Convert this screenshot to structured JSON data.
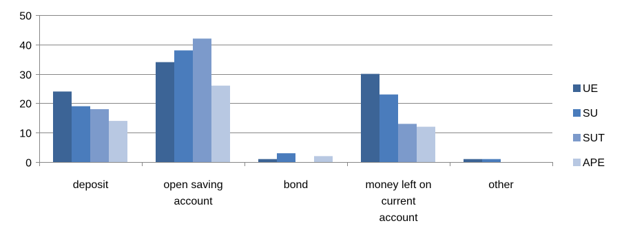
{
  "chart_data": {
    "type": "bar",
    "categories": [
      [
        "deposit"
      ],
      [
        "open saving",
        "account"
      ],
      [
        "bond"
      ],
      [
        "money left on",
        "current",
        "account"
      ],
      [
        "other"
      ]
    ],
    "series": [
      {
        "name": "UE",
        "color": "#3c6496",
        "values": [
          24,
          34,
          1,
          30,
          1
        ]
      },
      {
        "name": "SU",
        "color": "#4a7cbc",
        "values": [
          19,
          38,
          3,
          23,
          1
        ]
      },
      {
        "name": "SUT",
        "color": "#7c9acb",
        "values": [
          18,
          42,
          0,
          13,
          0
        ]
      },
      {
        "name": "APE",
        "color": "#b8c8e2",
        "values": [
          14,
          26,
          2,
          12,
          0
        ]
      }
    ],
    "ylim": [
      0,
      50
    ],
    "yticks": [
      0,
      10,
      20,
      30,
      40,
      50
    ],
    "grid": true,
    "legend_position": "right"
  }
}
